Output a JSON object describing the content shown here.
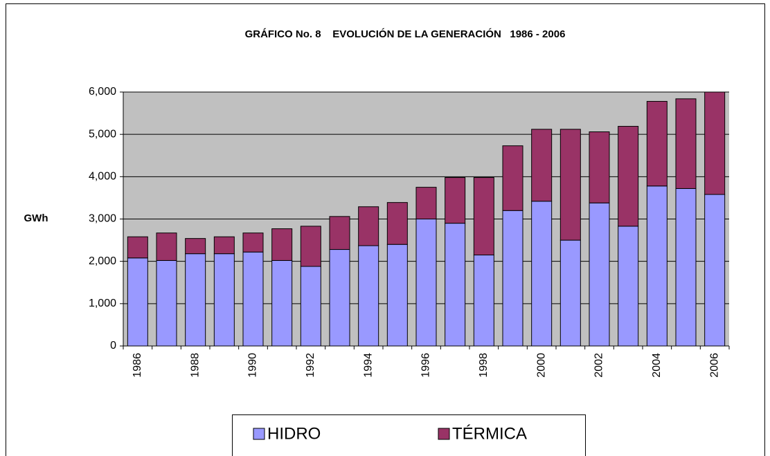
{
  "chart_data": {
    "type": "stacked_bar",
    "title": "GRÁFICO No. 8    EVOLUCIÓN DE LA GENERACIÓN   1986 - 2006",
    "y_label": "GWh",
    "categories": [
      "1986",
      null,
      "1988",
      null,
      "1990",
      null,
      "1992",
      null,
      "1994",
      null,
      "1996",
      null,
      "1998",
      null,
      "2000",
      null,
      "2002",
      null,
      "2004",
      null,
      "2006"
    ],
    "series": [
      {
        "name": "HIDRO",
        "color": "#9999ff",
        "values": [
          2080,
          2020,
          2180,
          2180,
          2220,
          2020,
          1880,
          2280,
          2370,
          2400,
          3000,
          2900,
          2150,
          3200,
          3420,
          2500,
          3380,
          2830,
          3780,
          3720,
          3580
        ]
      },
      {
        "name": "TÉRMICA",
        "color": "#993366",
        "values": [
          500,
          650,
          360,
          400,
          450,
          750,
          950,
          780,
          920,
          990,
          750,
          1080,
          1830,
          1530,
          1700,
          2620,
          1680,
          2360,
          2000,
          2120,
          2420
        ]
      }
    ],
    "ylim": [
      0,
      6000
    ],
    "yticks": [
      0,
      {
        "value": 1000,
        "label": "1,000"
      },
      {
        "value": 2000,
        "label": "2,000"
      },
      {
        "value": 3000,
        "label": "3,000"
      },
      {
        "value": 4000,
        "label": "4,000"
      },
      {
        "value": 5000,
        "label": "5,000"
      },
      {
        "value": 6000,
        "label": "6,000"
      }
    ],
    "grid": true,
    "legend": "bottom"
  }
}
